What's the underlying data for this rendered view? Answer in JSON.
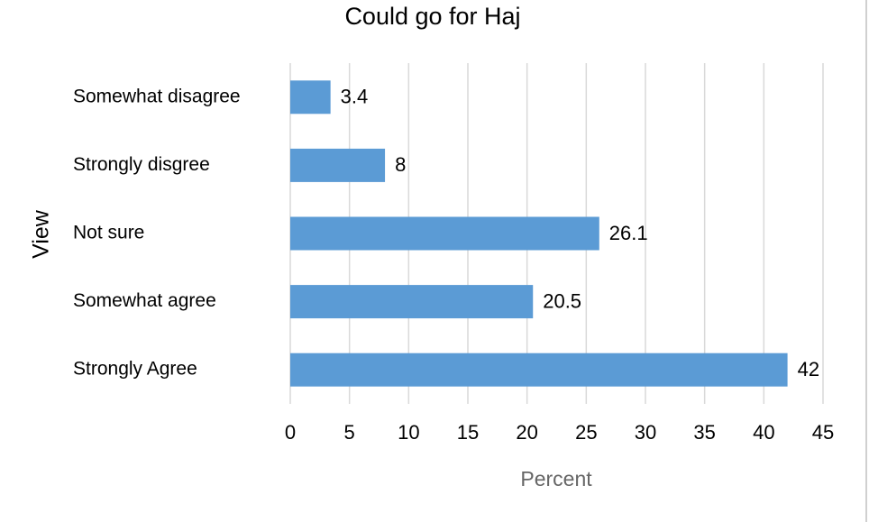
{
  "chart_data": {
    "type": "bar",
    "orientation": "horizontal",
    "title": "Could go for Haj",
    "x_label": "Percent",
    "y_label": "View",
    "categories": [
      "Somewhat disagree",
      "Strongly disgree",
      "Not sure",
      "Somewhat agree",
      "Strongly Agree"
    ],
    "values": [
      3.4,
      8,
      26.1,
      20.5,
      42
    ],
    "color": "#5b9bd5",
    "xlim": [
      0,
      45
    ],
    "xticks": [
      0,
      5,
      10,
      15,
      20,
      25,
      30,
      35,
      40,
      45
    ],
    "grid": true
  }
}
